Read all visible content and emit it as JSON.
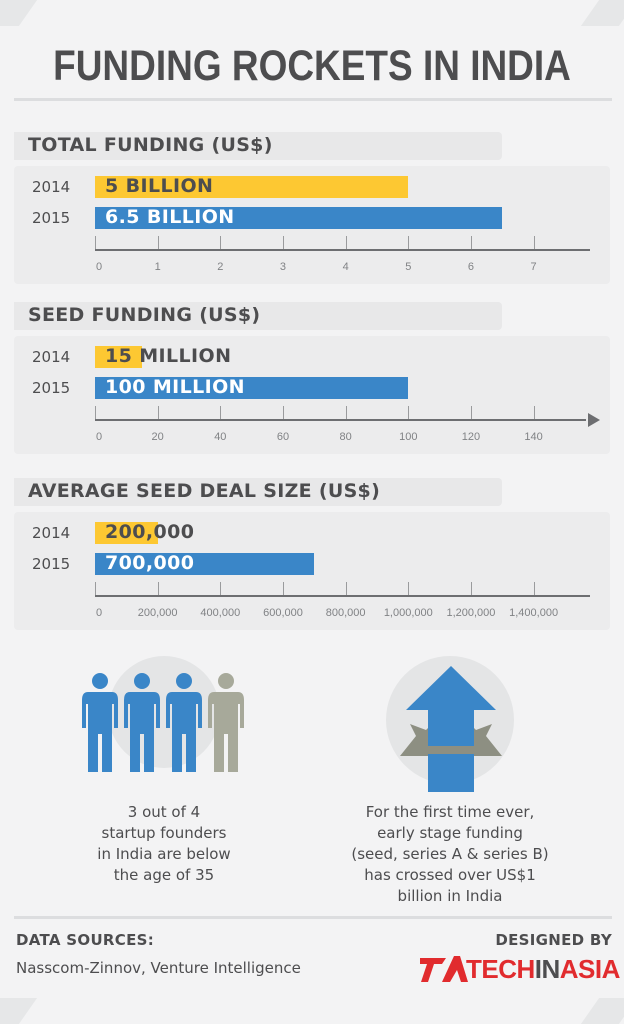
{
  "page": {
    "title": "FUNDING ROCKETS IN INDIA"
  },
  "colors": {
    "year_2014": "#fdc832",
    "year_2015": "#3a86c8",
    "person_highlight": "#3a86c8",
    "person_muted": "#a7a99a",
    "logo_red": "#e12b2e",
    "text": "#4d4d4f"
  },
  "chart_data": [
    {
      "type": "bar",
      "title": "TOTAL FUNDING (US$)",
      "orientation": "horizontal",
      "categories": [
        "2014",
        "2015"
      ],
      "values": [
        5,
        6.5
      ],
      "value_labels": [
        "5 BILLION",
        "6.5 BILLION"
      ],
      "ticks": [
        "0",
        "1",
        "2",
        "3",
        "4",
        "5",
        "6",
        "7"
      ],
      "xlim": [
        0,
        7.9
      ],
      "axis_arrow": false
    },
    {
      "type": "bar",
      "title": "SEED FUNDING (US$)",
      "orientation": "horizontal",
      "categories": [
        "2014",
        "2015"
      ],
      "values": [
        15,
        100
      ],
      "value_labels": [
        "15 MILLION",
        "100 MILLION"
      ],
      "ticks": [
        "0",
        "20",
        "40",
        "60",
        "80",
        "100",
        "120",
        "140"
      ],
      "xlim": [
        0,
        158
      ],
      "axis_arrow": true
    },
    {
      "type": "bar",
      "title": "AVERAGE SEED DEAL SIZE (US$)",
      "orientation": "horizontal",
      "categories": [
        "2014",
        "2015"
      ],
      "values": [
        200000,
        700000
      ],
      "value_labels": [
        "200,000",
        "700,000"
      ],
      "ticks": [
        "0",
        "200,000",
        "400,000",
        "600,000",
        "800,000",
        "1,000,000",
        "1,200,000",
        "1,400,000"
      ],
      "xlim": [
        0,
        1580000
      ],
      "axis_arrow": false
    }
  ],
  "facts": {
    "founders": {
      "lines": [
        "3 out of 4",
        "startup founders",
        "in India are below",
        "the age of 35"
      ],
      "highlighted_count": 3,
      "total_count": 4
    },
    "funding": {
      "lines": [
        "For the first time ever,",
        "early stage funding",
        "(seed, series A & series B)",
        "has crossed over US$1",
        "billion in India"
      ]
    }
  },
  "footer": {
    "sources_heading": "DATA SOURCES:",
    "sources_text": "Nasscom-Zinnov, Venture Intelligence",
    "designed_by": "DESIGNED BY",
    "logo_part1": "TECH",
    "logo_part2": "IN",
    "logo_part3": "ASIA",
    "logo_icon": "techinasia-logo-mark"
  }
}
